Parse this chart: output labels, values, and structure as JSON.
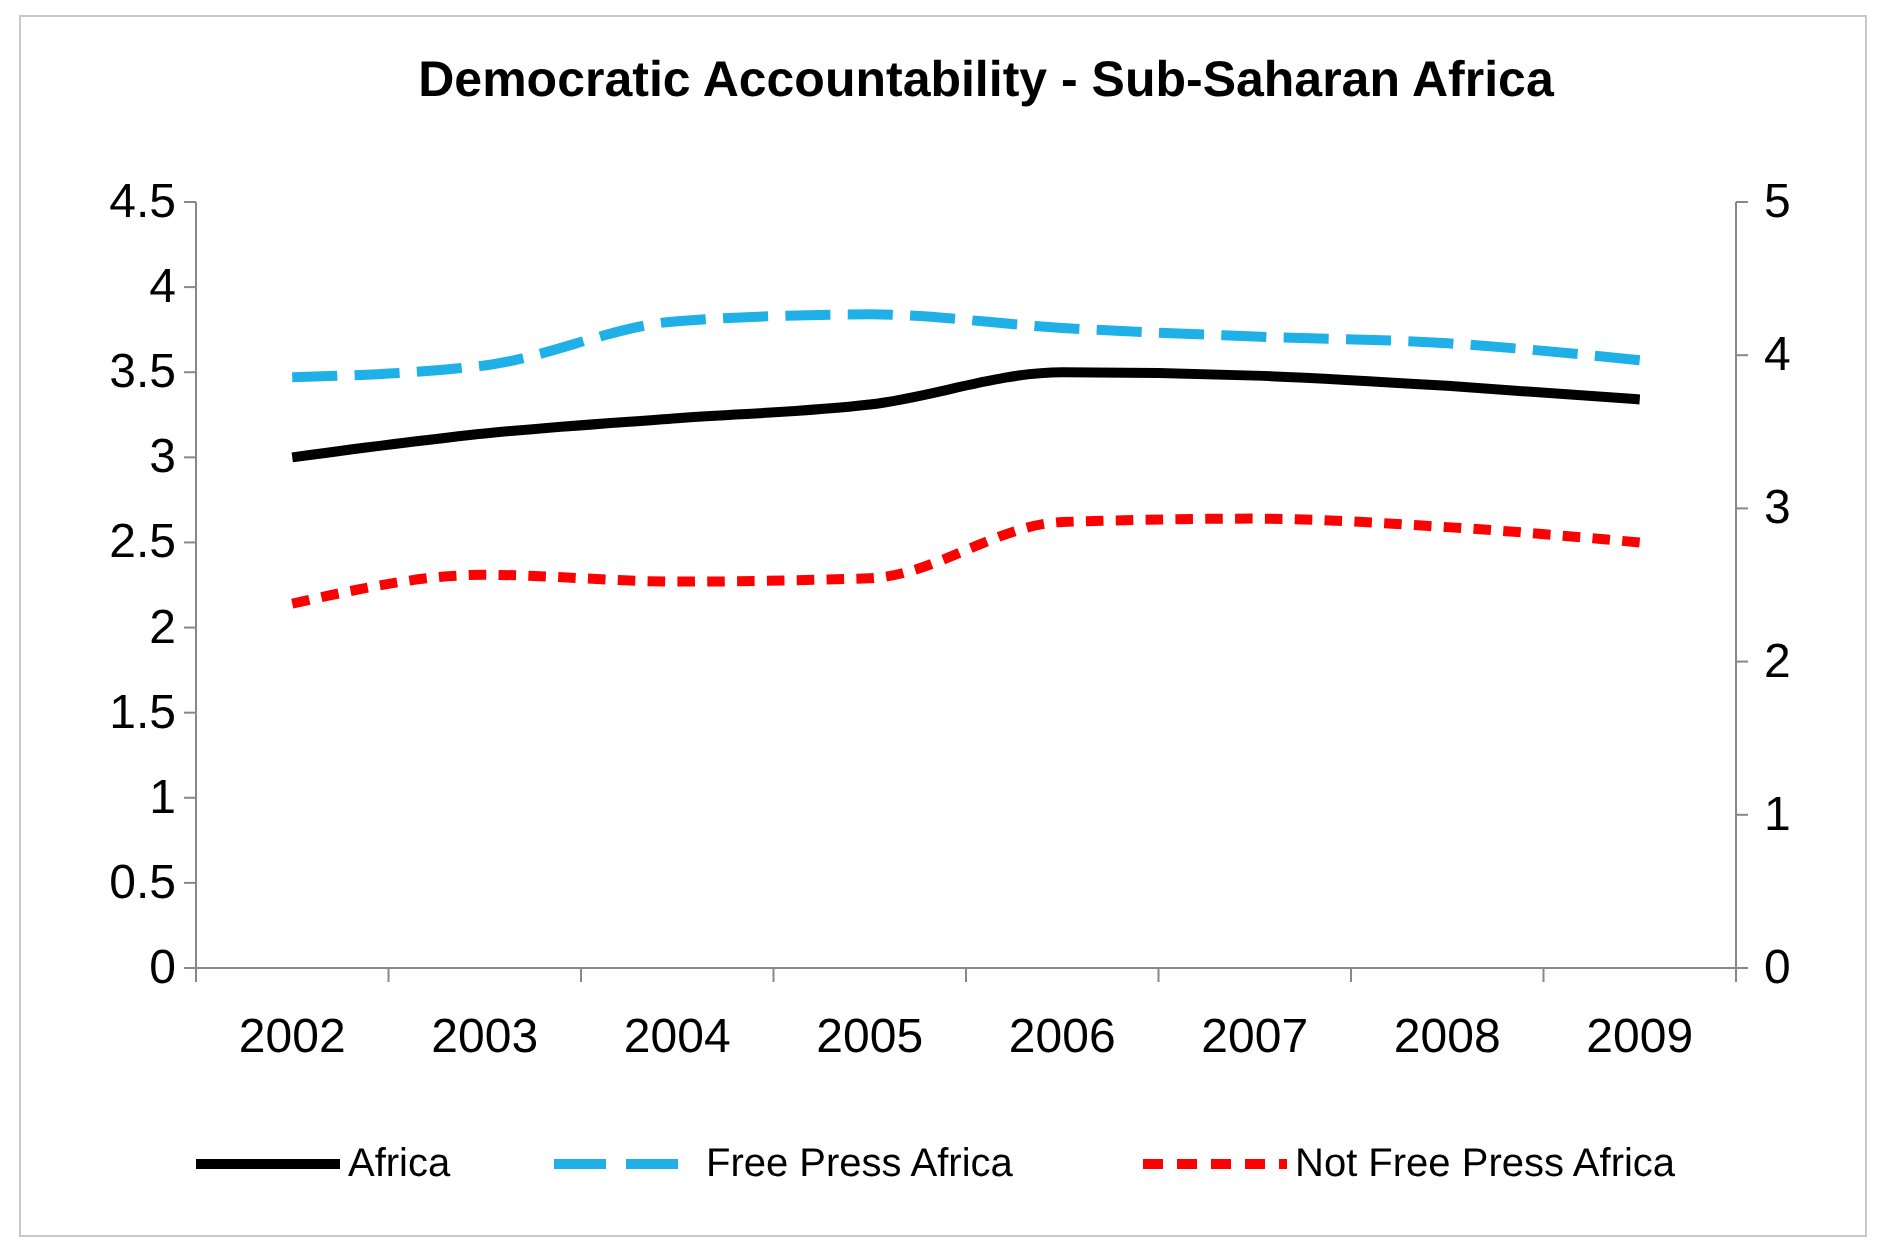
{
  "chart_data": {
    "type": "line",
    "title": "Democratic Accountability - Sub-Saharan Africa",
    "categories": [
      "2002",
      "2003",
      "2004",
      "2005",
      "2006",
      "2007",
      "2008",
      "2009"
    ],
    "series": [
      {
        "name": "Africa",
        "color": "#000000",
        "line_style": "solid",
        "values": [
          3.0,
          3.14,
          3.23,
          3.31,
          3.5,
          3.48,
          3.42,
          3.34
        ]
      },
      {
        "name": "Free Press Africa",
        "color": "#1fb0e8",
        "line_style": "dashed",
        "values": [
          3.47,
          3.54,
          3.8,
          3.84,
          3.76,
          3.71,
          3.67,
          3.57
        ]
      },
      {
        "name": "Not Free Press Africa",
        "color": "#ff0000",
        "line_style": "dotted",
        "values": [
          2.14,
          2.31,
          2.27,
          2.29,
          2.62,
          2.64,
          2.59,
          2.5
        ]
      }
    ],
    "ylim": [
      0,
      4.5
    ],
    "yticks": [
      0,
      0.5,
      1,
      1.5,
      2,
      2.5,
      3,
      3.5,
      4,
      4.5
    ],
    "y2lim": [
      0,
      5
    ],
    "y2ticks": [
      0,
      1,
      2,
      3,
      4,
      5
    ],
    "grid": false,
    "legend": "bottom",
    "marker": "none"
  }
}
